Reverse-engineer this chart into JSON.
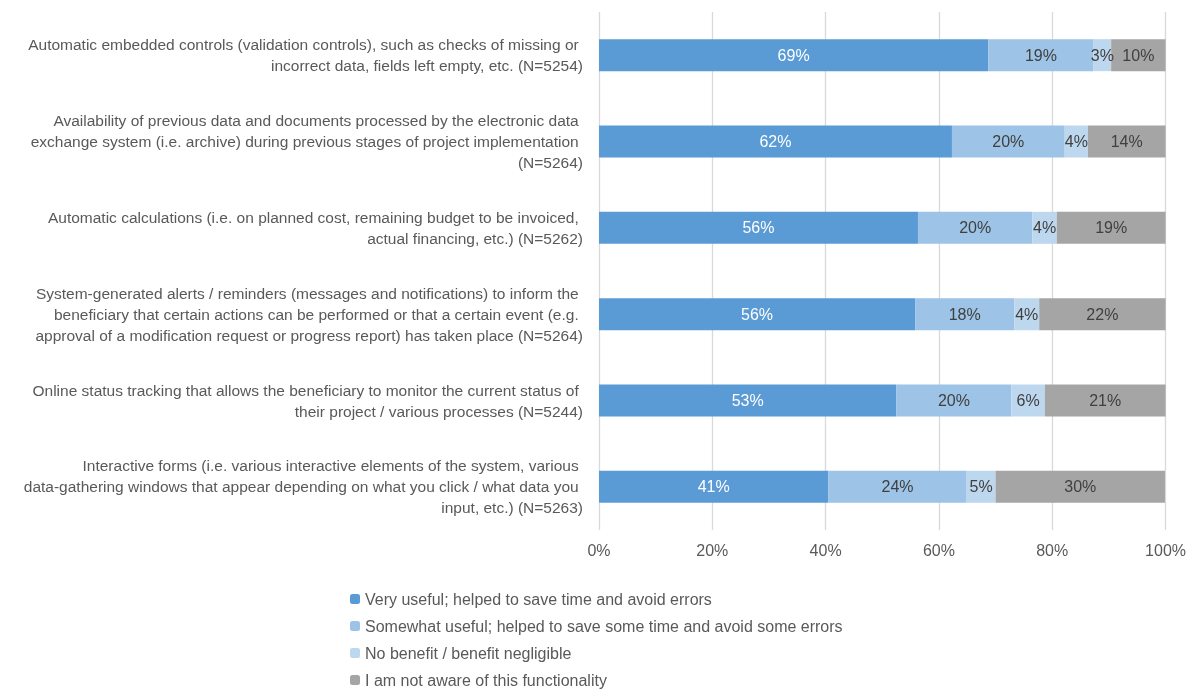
{
  "chart_data": {
    "type": "bar",
    "orientation": "horizontal",
    "stacked": true,
    "categories": [
      "Automatic embedded controls (validation controls), such as checks of missing or incorrect data, fields left empty, etc. (N=5254)",
      "Availability of previous data and documents processed by the electronic data exchange system (i.e. archive) during previous stages of project implementation (N=5264)",
      "Automatic calculations (i.e. on planned cost, remaining budget to be invoiced, actual financing, etc.) (N=5262)",
      "System-generated alerts / reminders (messages and notifications) to inform the beneficiary that certain actions can be performed or that a certain event (e.g. approval of a modification request or progress report) has taken place (N=5264)",
      "Online status tracking that allows the beneficiary to monitor the current status of their project / various processes (N=5244)",
      "Interactive forms (i.e. various interactive elements of the system, various data-gathering windows that appear depending on what you click / what data you input, etc.) (N=5263)"
    ],
    "series": [
      {
        "name": "Very useful; helped to save time and avoid errors",
        "color": "#5b9bd5",
        "values": [
          68.7,
          62.3,
          56.3,
          55.8,
          52.5,
          40.5
        ],
        "value_labels": [
          "69%",
          "62%",
          "56%",
          "56%",
          "53%",
          "41%"
        ]
      },
      {
        "name": "Somewhat useful; helped to save some time and avoid some errors",
        "color": "#9dc3e6",
        "values": [
          18.6,
          19.9,
          20.2,
          17.5,
          20.3,
          24.4
        ],
        "value_labels": [
          "19%",
          "20%",
          "20%",
          "18%",
          "20%",
          "24%"
        ]
      },
      {
        "name": "No benefit / benefit negligible",
        "color": "#bdd7ee",
        "values": [
          3.1,
          4.1,
          4.3,
          4.4,
          5.9,
          5.1
        ],
        "value_labels": [
          "3%",
          "4%",
          "4%",
          "4%",
          "6%",
          "5%"
        ]
      },
      {
        "name": "I am not aware of this functionality",
        "color": "#a5a5a5",
        "values": [
          9.6,
          13.7,
          19.2,
          22.3,
          21.3,
          29.9
        ],
        "value_labels": [
          "10%",
          "14%",
          "19%",
          "22%",
          "21%",
          "30%"
        ]
      }
    ],
    "xlim": [
      0,
      100
    ],
    "xticks": [
      {
        "value": 0,
        "label": "0%"
      },
      {
        "value": 20,
        "label": "20%"
      },
      {
        "value": 40,
        "label": "40%"
      },
      {
        "value": 60,
        "label": "60%"
      },
      {
        "value": 80,
        "label": "80%"
      },
      {
        "value": 100,
        "label": "100%"
      }
    ],
    "grid": "x",
    "legend": "bottom"
  }
}
